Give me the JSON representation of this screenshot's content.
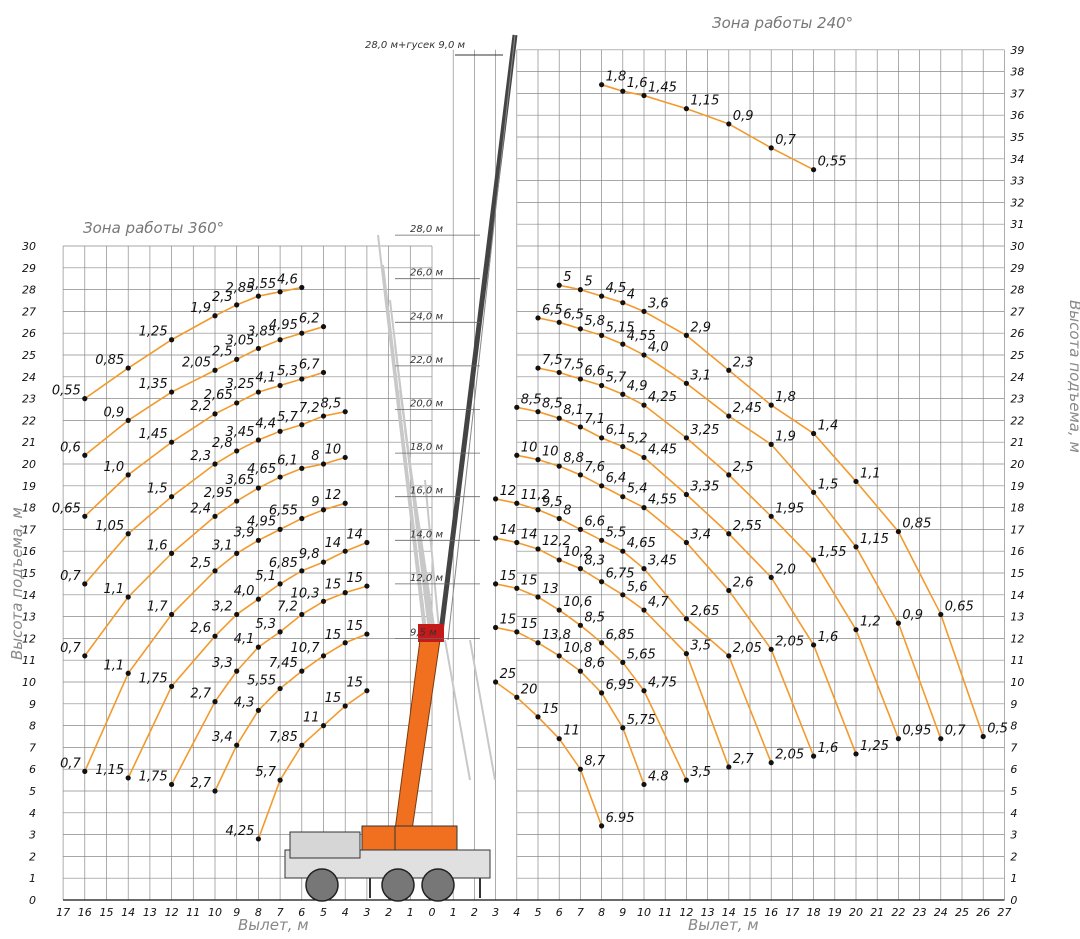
{
  "zones": {
    "left_title": "Зона работы 360°",
    "right_title": "Зона работы 240°"
  },
  "axes": {
    "x_label_left": "Вылет, м",
    "x_label_right": "Вылет, м",
    "y_label_left": "Высота подъема, м",
    "y_label_right": "Высота подъема, м"
  },
  "annotations": {
    "jib_note": "28,0 м+гусек 9,0 м",
    "boom_lengths": [
      "28,0 м",
      "26,0 м",
      "24,0 м",
      "22,0 м",
      "20,0 м",
      "18,0 м",
      "16,0 м",
      "14,0 м",
      "12,0 м",
      "9,5 м"
    ]
  },
  "colors": {
    "curve": "#f29a2e",
    "crane_boom": "#f07020",
    "grid": "#8a8a8a"
  },
  "chart_data": {
    "type": "line",
    "x_ticks_left": [
      17,
      16,
      15,
      14,
      13,
      12,
      11,
      10,
      9,
      8,
      7,
      6,
      5,
      4,
      3,
      2,
      1,
      0
    ],
    "x_ticks_right": [
      1,
      2,
      3,
      4,
      5,
      6,
      7,
      8,
      9,
      10,
      11,
      12,
      13,
      14,
      15,
      16,
      17,
      18,
      19,
      20,
      21,
      22,
      23,
      24,
      25,
      26,
      27
    ],
    "y_ticks_left_max": 30,
    "y_ticks_right_max": 39,
    "left_zone": [
      {
        "points": [
          [
            16,
            23,
            "0,55"
          ],
          [
            14,
            24.4,
            "0,85"
          ],
          [
            12,
            25.7,
            "1,25"
          ],
          [
            10,
            26.8,
            "1,9"
          ],
          [
            9,
            27.3,
            "2,3"
          ],
          [
            8,
            27.7,
            "2,85"
          ],
          [
            7,
            27.9,
            "3,55"
          ],
          [
            6,
            28.1,
            "4,6"
          ]
        ]
      },
      {
        "points": [
          [
            16,
            20.4,
            "0,6"
          ],
          [
            14,
            22,
            "0,9"
          ],
          [
            12,
            23.3,
            "1,35"
          ],
          [
            10,
            24.3,
            "2,05"
          ],
          [
            9,
            24.8,
            "2,5"
          ],
          [
            8,
            25.3,
            "3,05"
          ],
          [
            7,
            25.7,
            "3,85"
          ],
          [
            6,
            26,
            "4,95"
          ],
          [
            5,
            26.3,
            "6,2"
          ]
        ]
      },
      {
        "points": [
          [
            16,
            17.6,
            "0,65"
          ],
          [
            14,
            19.5,
            "1,0"
          ],
          [
            12,
            21,
            "1,45"
          ],
          [
            10,
            22.3,
            "2,2"
          ],
          [
            9,
            22.8,
            "2,65"
          ],
          [
            8,
            23.3,
            "3,25"
          ],
          [
            7,
            23.6,
            "4,1"
          ],
          [
            6,
            23.9,
            "5,3"
          ],
          [
            5,
            24.2,
            "6,7"
          ]
        ]
      },
      {
        "points": [
          [
            16,
            14.5,
            "0,7"
          ],
          [
            14,
            16.8,
            "1,05"
          ],
          [
            12,
            18.5,
            "1,5"
          ],
          [
            10,
            20,
            "2,3"
          ],
          [
            9,
            20.6,
            "2,8"
          ],
          [
            8,
            21.1,
            "3,45"
          ],
          [
            7,
            21.5,
            "4,4"
          ],
          [
            6,
            21.8,
            "5,7"
          ],
          [
            5,
            22.2,
            "7,2"
          ],
          [
            4,
            22.4,
            "8,5"
          ]
        ]
      },
      {
        "points": [
          [
            16,
            11.2,
            "0,7"
          ],
          [
            14,
            13.9,
            "1,1"
          ],
          [
            12,
            15.9,
            "1,6"
          ],
          [
            10,
            17.6,
            "2,4"
          ],
          [
            9,
            18.3,
            "2,95"
          ],
          [
            8,
            18.9,
            "3,65"
          ],
          [
            7,
            19.4,
            "4,65"
          ],
          [
            6,
            19.8,
            "6,1"
          ],
          [
            5,
            20,
            "8"
          ],
          [
            4,
            20.3,
            "10"
          ]
        ]
      },
      {
        "points": [
          [
            16,
            5.9,
            "0,7"
          ],
          [
            14,
            10.4,
            "1,1"
          ],
          [
            12,
            13.1,
            "1,7"
          ],
          [
            10,
            15.1,
            "2,5"
          ],
          [
            9,
            15.9,
            "3,1"
          ],
          [
            8,
            16.5,
            "3,9"
          ],
          [
            7,
            17,
            "4,95"
          ],
          [
            6,
            17.5,
            "6,55"
          ],
          [
            5,
            17.9,
            "9"
          ],
          [
            4,
            18.2,
            "12"
          ]
        ]
      },
      {
        "points": [
          [
            14,
            5.6,
            "1,15"
          ],
          [
            12,
            9.8,
            "1,75"
          ],
          [
            10,
            12.1,
            "2,6"
          ],
          [
            9,
            13.1,
            "3,2"
          ],
          [
            8,
            13.8,
            "4,0"
          ],
          [
            7,
            14.5,
            "5,1"
          ],
          [
            6,
            15.1,
            "6,85"
          ],
          [
            5,
            15.5,
            "9,8"
          ],
          [
            4,
            16.0,
            "14"
          ],
          [
            3,
            16.4,
            "14"
          ]
        ]
      },
      {
        "points": [
          [
            12,
            5.3,
            "1,75"
          ],
          [
            10,
            9.1,
            "2,7"
          ],
          [
            9,
            10.5,
            "3,3"
          ],
          [
            8,
            11.6,
            "4,1"
          ],
          [
            7,
            12.3,
            "5,3"
          ],
          [
            6,
            13.1,
            "7,2"
          ],
          [
            5,
            13.7,
            "10,3"
          ],
          [
            4,
            14.1,
            "15"
          ],
          [
            3,
            14.4,
            "15"
          ]
        ]
      },
      {
        "points": [
          [
            10,
            5,
            "2,7"
          ],
          [
            9,
            7.1,
            "3,4"
          ],
          [
            8,
            8.7,
            "4,3"
          ],
          [
            7,
            9.7,
            "5,55"
          ],
          [
            6,
            10.5,
            "7,45"
          ],
          [
            5,
            11.2,
            "10,7"
          ],
          [
            4,
            11.8,
            "15"
          ],
          [
            3,
            12.2,
            "15"
          ]
        ]
      },
      {
        "points": [
          [
            8,
            2.8,
            "4,25"
          ],
          [
            7,
            5.5,
            "5,7"
          ],
          [
            6,
            7.1,
            "7,85"
          ],
          [
            5,
            8.0,
            "11"
          ],
          [
            4,
            8.9,
            "15"
          ],
          [
            3,
            9.6,
            "15"
          ]
        ]
      }
    ],
    "right_zone_jib": [
      {
        "points": [
          [
            8,
            37.4,
            "1,8"
          ],
          [
            9,
            37.1,
            "1,6"
          ],
          [
            10,
            36.9,
            "1,45"
          ],
          [
            12,
            36.3,
            "1,15"
          ],
          [
            14,
            35.6,
            "0,9"
          ],
          [
            16,
            34.5,
            "0,7"
          ],
          [
            18,
            33.5,
            "0,55"
          ]
        ]
      }
    ],
    "right_zone": [
      {
        "points": [
          [
            6,
            28.2,
            "5"
          ],
          [
            7,
            28,
            "5"
          ],
          [
            8,
            27.7,
            "4,5"
          ],
          [
            9,
            27.4,
            "4"
          ],
          [
            10,
            27,
            "3,6"
          ],
          [
            12,
            25.9,
            "2,9"
          ],
          [
            14,
            24.3,
            "2,3"
          ],
          [
            16,
            22.7,
            "1,8"
          ],
          [
            18,
            21.4,
            "1,4"
          ],
          [
            20,
            19.2,
            "1,1"
          ],
          [
            22,
            16.9,
            "0,85"
          ],
          [
            24,
            13.1,
            "0,65"
          ],
          [
            26,
            7.5,
            "0,5"
          ]
        ]
      },
      {
        "points": [
          [
            5,
            26.7,
            "6,5"
          ],
          [
            6,
            26.5,
            "6,5"
          ],
          [
            7,
            26.2,
            "5,8"
          ],
          [
            8,
            25.9,
            "5,15"
          ],
          [
            9,
            25.5,
            "4,55"
          ],
          [
            10,
            25,
            "4,0"
          ],
          [
            12,
            23.7,
            "3,1"
          ],
          [
            14,
            22.2,
            "2,45"
          ],
          [
            16,
            20.9,
            "1,9"
          ],
          [
            18,
            18.7,
            "1,5"
          ],
          [
            20,
            16.2,
            "1,15"
          ],
          [
            22,
            12.7,
            "0,9"
          ],
          [
            24,
            7.4,
            "0,7"
          ]
        ]
      },
      {
        "points": [
          [
            5,
            24.4,
            "7,5"
          ],
          [
            6,
            24.2,
            "7,5"
          ],
          [
            7,
            23.9,
            "6,6"
          ],
          [
            8,
            23.6,
            "5,7"
          ],
          [
            9,
            23.2,
            "4,9"
          ],
          [
            10,
            22.7,
            "4,25"
          ],
          [
            12,
            21.2,
            "3,25"
          ],
          [
            14,
            19.5,
            "2,5"
          ],
          [
            16,
            17.6,
            "1,95"
          ],
          [
            18,
            15.6,
            "1,55"
          ],
          [
            20,
            12.4,
            "1,2"
          ],
          [
            22,
            7.4,
            "0,95"
          ]
        ]
      },
      {
        "points": [
          [
            4,
            22.6,
            "8,5"
          ],
          [
            5,
            22.4,
            "8,5"
          ],
          [
            6,
            22.1,
            "8,1"
          ],
          [
            7,
            21.7,
            "7,1"
          ],
          [
            8,
            21.2,
            "6,1"
          ],
          [
            9,
            20.8,
            "5,2"
          ],
          [
            10,
            20.3,
            "4,45"
          ],
          [
            12,
            18.6,
            "3,35"
          ],
          [
            14,
            16.8,
            "2,55"
          ],
          [
            16,
            14.8,
            "2,0"
          ],
          [
            18,
            11.7,
            "1,6"
          ],
          [
            20,
            6.7,
            "1,25"
          ]
        ]
      },
      {
        "points": [
          [
            4,
            20.4,
            "10"
          ],
          [
            5,
            20.2,
            "10"
          ],
          [
            6,
            19.9,
            "8,8"
          ],
          [
            7,
            19.5,
            "7,6"
          ],
          [
            8,
            19,
            "6,4"
          ],
          [
            9,
            18.5,
            "5,4"
          ],
          [
            10,
            18,
            "4,55"
          ],
          [
            12,
            16.4,
            "3,4"
          ],
          [
            14,
            14.2,
            "2,6"
          ],
          [
            16,
            11.5,
            "2,05"
          ],
          [
            18,
            6.6,
            "1,6"
          ]
        ]
      },
      {
        "points": [
          [
            3,
            18.4,
            "12"
          ],
          [
            4,
            18.2,
            "11,2"
          ],
          [
            5,
            17.9,
            "9,5"
          ],
          [
            6,
            17.5,
            "8"
          ],
          [
            7,
            17,
            "6,6"
          ],
          [
            8,
            16.5,
            "5,5"
          ],
          [
            9,
            16,
            "4,65"
          ],
          [
            10,
            15.2,
            "3,45"
          ],
          [
            12,
            12.9,
            "2,65"
          ],
          [
            14,
            11.2,
            "2,05"
          ],
          [
            16,
            6.3,
            "2,05"
          ]
        ]
      },
      {
        "points": [
          [
            3,
            16.6,
            "14"
          ],
          [
            4,
            16.4,
            "14"
          ],
          [
            5,
            16.1,
            "12,2"
          ],
          [
            6,
            15.6,
            "10,2"
          ],
          [
            7,
            15.2,
            "8,3"
          ],
          [
            8,
            14.6,
            "6,75"
          ],
          [
            9,
            14.0,
            "5,6"
          ],
          [
            10,
            13.3,
            "4,7"
          ],
          [
            12,
            11.3,
            "3,5"
          ],
          [
            14,
            6.1,
            "2,7"
          ]
        ]
      },
      {
        "points": [
          [
            3,
            14.5,
            "15"
          ],
          [
            4,
            14.3,
            "15"
          ],
          [
            5,
            13.9,
            "13"
          ],
          [
            6,
            13.3,
            "10,6"
          ],
          [
            7,
            12.6,
            "8,5"
          ],
          [
            8,
            11.8,
            "6,85"
          ],
          [
            9,
            10.9,
            "5,65"
          ],
          [
            10,
            9.6,
            "4,75"
          ],
          [
            12,
            5.5,
            "3,5"
          ]
        ]
      },
      {
        "points": [
          [
            3,
            12.5,
            "15"
          ],
          [
            4,
            12.3,
            "15"
          ],
          [
            5,
            11.8,
            "13,8"
          ],
          [
            6,
            11.2,
            "10,8"
          ],
          [
            7,
            10.5,
            "8,6"
          ],
          [
            8,
            9.5,
            "6,95"
          ],
          [
            9,
            7.9,
            "5,75"
          ],
          [
            10,
            5.3,
            "4.8"
          ]
        ]
      },
      {
        "points": [
          [
            3,
            10,
            "25"
          ],
          [
            4,
            9.3,
            "20"
          ],
          [
            5,
            8.4,
            "15"
          ],
          [
            6,
            7.4,
            "11"
          ],
          [
            7,
            6,
            "8,7"
          ],
          [
            8,
            3.4,
            "6.95"
          ]
        ]
      }
    ]
  }
}
